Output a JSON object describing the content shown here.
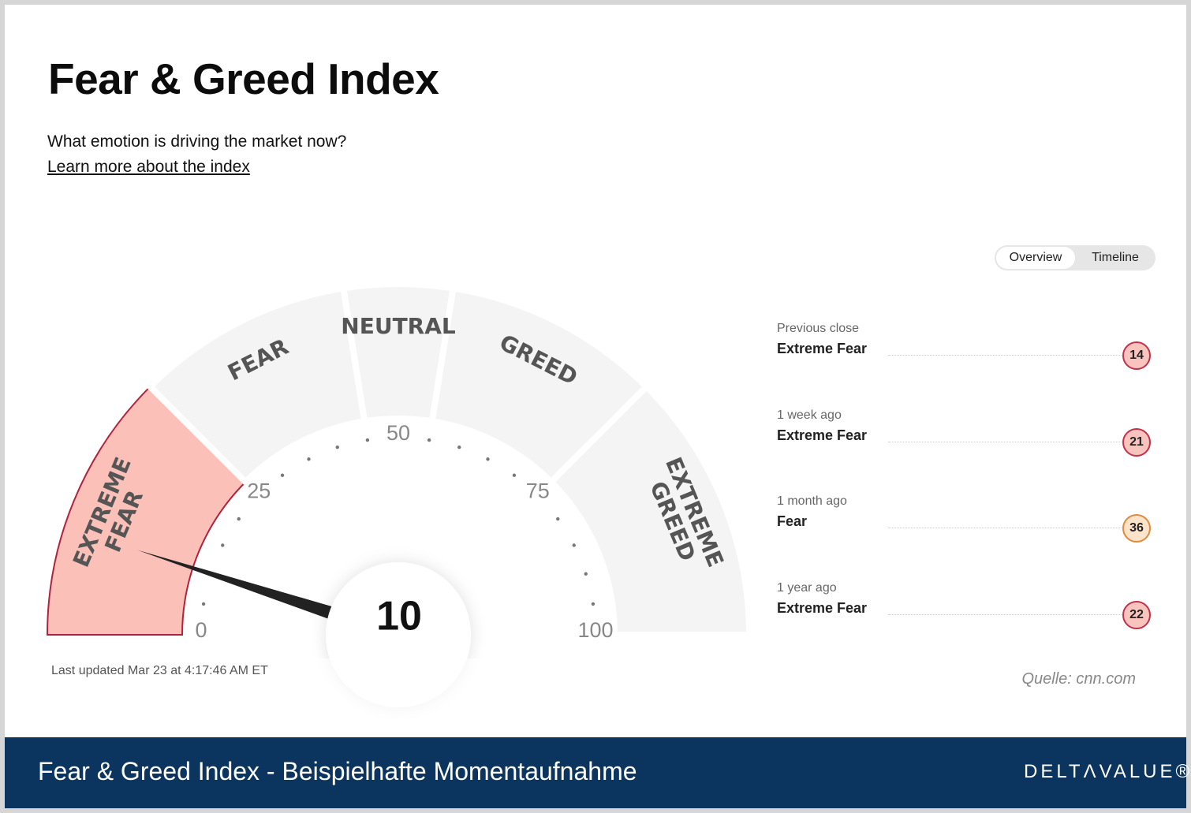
{
  "header": {
    "title": "Fear & Greed Index",
    "subtitle": "What emotion is driving the market now?",
    "link": "Learn more about the index"
  },
  "tabs": [
    "Overview",
    "Timeline"
  ],
  "gauge": {
    "value": 10,
    "range": [
      0,
      100
    ],
    "ticks": [
      0,
      25,
      50,
      75,
      100
    ],
    "segments": [
      {
        "lines": [
          "EXTREME",
          "FEAR"
        ],
        "from": 0,
        "to": 25,
        "active": true
      },
      {
        "lines": [
          "FEAR"
        ],
        "from": 25,
        "to": 45,
        "active": false
      },
      {
        "lines": [
          "NEUTRAL"
        ],
        "from": 45,
        "to": 55,
        "active": false
      },
      {
        "lines": [
          "GREED"
        ],
        "from": 55,
        "to": 75,
        "active": false
      },
      {
        "lines": [
          "EXTREME",
          "GREED"
        ],
        "from": 75,
        "to": 100,
        "active": false
      }
    ]
  },
  "last_updated": "Last updated Mar 23 at 4:17:46 AM ET",
  "history": [
    {
      "period": "Previous close",
      "rating": "Extreme Fear",
      "value": 14,
      "fill": "#f8c4bd",
      "stroke": "#c2304a"
    },
    {
      "period": "1 week ago",
      "rating": "Extreme Fear",
      "value": 21,
      "fill": "#f8c4bd",
      "stroke": "#c2304a"
    },
    {
      "period": "1 month ago",
      "rating": "Fear",
      "value": 36,
      "fill": "#fde3ca",
      "stroke": "#e08a3c"
    },
    {
      "period": "1 year ago",
      "rating": "Extreme Fear",
      "value": 22,
      "fill": "#f8c4bd",
      "stroke": "#c2304a"
    }
  ],
  "source": "Quelle: cnn.com",
  "footer": {
    "caption": "Fear & Greed Index - Beispielhafte Momentaufnahme",
    "logo": "DELTΛVALUE®"
  }
}
